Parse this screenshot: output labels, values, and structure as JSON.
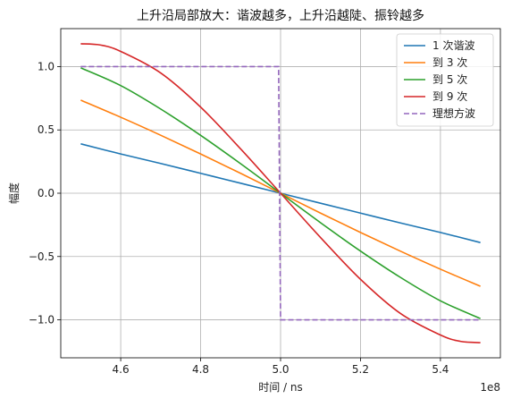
{
  "chart_data": {
    "type": "line",
    "title": "上升沿局部放大：谐波越多，上升沿越陡、振铃越多",
    "xlabel": "时间 / ns",
    "ylabel": "幅度",
    "x_offset_label": "1e8",
    "xlim": [
      4.45,
      5.55
    ],
    "ylim": [
      -1.3,
      1.3
    ],
    "x_ticks": [
      4.6,
      4.8,
      5.0,
      5.2,
      5.4
    ],
    "x_tick_labels": [
      "4.6",
      "4.8",
      "5.0",
      "5.2",
      "5.4"
    ],
    "y_ticks": [
      -1.0,
      -0.5,
      0.0,
      0.5,
      1.0
    ],
    "y_tick_labels": [
      "−1.0",
      "−0.5",
      "0.0",
      "0.5",
      "1.0"
    ],
    "grid": true,
    "legend_position": "top-right",
    "series": [
      {
        "name": "1 次谐波",
        "color": "#1f77b4",
        "dashed": false,
        "x": [
          4.5,
          4.6,
          4.7,
          4.8,
          4.9,
          5.0,
          5.1,
          5.2,
          5.3,
          5.4,
          5.5
        ],
        "y": [
          0.39,
          0.31,
          0.235,
          0.157,
          0.079,
          0.0,
          -0.079,
          -0.157,
          -0.235,
          -0.31,
          -0.39
        ]
      },
      {
        "name": "到 3 次",
        "color": "#ff7f0e",
        "dashed": false,
        "x": [
          4.5,
          4.6,
          4.7,
          4.8,
          4.9,
          5.0,
          5.1,
          5.2,
          5.3,
          5.4,
          5.5
        ],
        "y": [
          0.735,
          0.6,
          0.458,
          0.31,
          0.157,
          0.0,
          -0.157,
          -0.31,
          -0.458,
          -0.6,
          -0.735
        ]
      },
      {
        "name": "到 5 次",
        "color": "#2ca02c",
        "dashed": false,
        "x": [
          4.5,
          4.6,
          4.7,
          4.8,
          4.9,
          5.0,
          5.1,
          5.2,
          5.3,
          5.4,
          5.5
        ],
        "y": [
          0.99,
          0.85,
          0.665,
          0.457,
          0.233,
          0.0,
          -0.233,
          -0.457,
          -0.665,
          -0.85,
          -0.99
        ]
      },
      {
        "name": "到 9 次",
        "color": "#d62728",
        "dashed": false,
        "x": [
          4.5,
          4.55,
          4.6,
          4.7,
          4.8,
          4.9,
          5.0,
          5.1,
          5.2,
          5.3,
          5.4,
          5.45,
          5.5
        ],
        "y": [
          1.18,
          1.17,
          1.12,
          0.95,
          0.68,
          0.35,
          0.0,
          -0.35,
          -0.68,
          -0.95,
          -1.12,
          -1.17,
          -1.18
        ]
      },
      {
        "name": "理想方波",
        "color": "#9467bd",
        "dashed": true,
        "x": [
          4.5,
          4.995,
          5.0,
          5.5
        ],
        "y": [
          1.0,
          1.0,
          -1.0,
          -1.0
        ]
      }
    ]
  }
}
